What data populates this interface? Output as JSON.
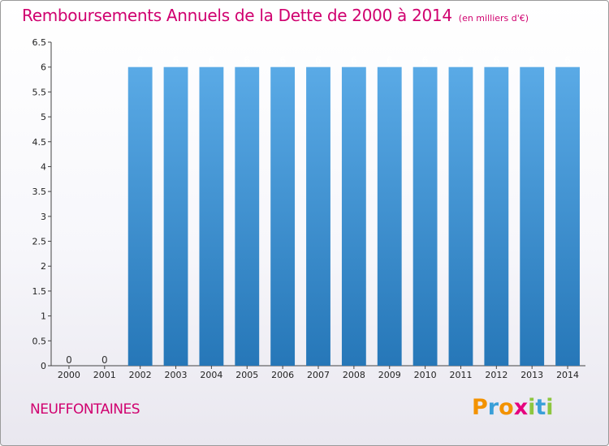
{
  "header": {
    "title": "Remboursements Annuels de la Dette de 2000 à 2014",
    "subtitle": "(en milliers d'€)"
  },
  "footer": {
    "commune": "NEUFFONTAINES",
    "logo_letters": [
      "P",
      "r",
      "o",
      "x",
      "i",
      "t",
      "i"
    ],
    "logo_colors": [
      "#f39200",
      "#3a9fd8",
      "#f39200",
      "#e6007e",
      "#8dc63f",
      "#3a9fd8",
      "#8dc63f"
    ]
  },
  "chart_data": {
    "type": "bar",
    "title": "Remboursements Annuels de la Dette de 2000 à 2014",
    "subtitle": "(en milliers d'€)",
    "categories": [
      "2000",
      "2001",
      "2002",
      "2003",
      "2004",
      "2005",
      "2006",
      "2007",
      "2008",
      "2009",
      "2010",
      "2011",
      "2012",
      "2013",
      "2014"
    ],
    "values": [
      0,
      0,
      6,
      6,
      6,
      6,
      6,
      6,
      6,
      6,
      6,
      6,
      6,
      6,
      6
    ],
    "data_labels": [
      "0",
      "0",
      "6",
      "6",
      "6",
      "6",
      "6",
      "6",
      "6",
      "6",
      "6",
      "6",
      "6",
      "6",
      "6"
    ],
    "y_ticks": [
      0,
      0.5,
      1,
      1.5,
      2,
      2.5,
      3,
      3.5,
      4,
      4.5,
      5,
      5.5,
      6,
      6.5
    ],
    "y_tick_labels": [
      "0",
      "0.5",
      "1",
      "1.5",
      "2",
      "2.5",
      "3",
      "3.5",
      "4",
      "4.5",
      "5",
      "5.5",
      "6",
      "6.5"
    ],
    "ylim": [
      0,
      6.5
    ],
    "xlabel": "",
    "ylabel": "",
    "grid": false,
    "bar_color_top": "#5aaae6",
    "bar_color_bottom": "#2677b8"
  }
}
